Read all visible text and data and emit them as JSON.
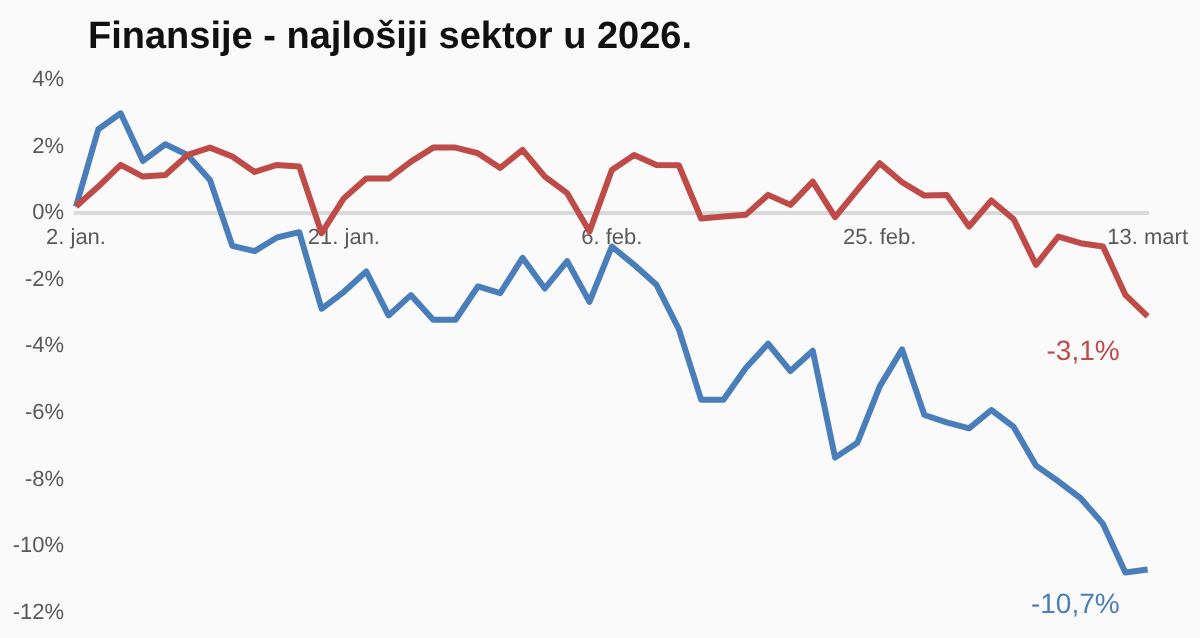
{
  "chart_data": {
    "type": "line",
    "title": "Finansije - najlošiji sektor u 2026.",
    "categories": [
      "2. jan.",
      null,
      null,
      null,
      null,
      null,
      null,
      null,
      null,
      null,
      null,
      null,
      "21. jan.",
      null,
      null,
      null,
      null,
      null,
      null,
      null,
      null,
      null,
      null,
      null,
      "6. feb.",
      null,
      null,
      null,
      null,
      null,
      null,
      null,
      null,
      null,
      null,
      null,
      "25. feb.",
      null,
      null,
      null,
      null,
      null,
      null,
      null,
      null,
      null,
      null,
      null,
      "13. mart"
    ],
    "series": [
      {
        "color": "#be4b48",
        "values": [
          0.2,
          0.8,
          1.45,
          1.1,
          1.15,
          1.75,
          1.97,
          1.7,
          1.24,
          1.45,
          1.4,
          -0.6,
          0.45,
          1.04,
          1.04,
          1.55,
          1.97,
          1.97,
          1.8,
          1.36,
          1.9,
          1.1,
          0.6,
          -0.55,
          1.3,
          1.75,
          1.45,
          1.44,
          -0.16,
          -0.1,
          -0.05,
          0.55,
          0.25,
          0.95,
          -0.12,
          0.7,
          1.5,
          0.93,
          0.53,
          0.55,
          -0.4,
          0.38,
          -0.18,
          -1.55,
          -0.7,
          -0.9,
          -1.0,
          -2.45,
          -3.1
        ]
      },
      {
        "color": "#4a7ebb",
        "values": [
          0.2,
          2.52,
          3.0,
          1.57,
          2.07,
          1.75,
          1.0,
          -0.98,
          -1.14,
          -0.73,
          -0.57,
          -2.87,
          -2.36,
          -1.75,
          -3.07,
          -2.46,
          -3.2,
          -3.2,
          -2.2,
          -2.4,
          -1.34,
          -2.26,
          -1.44,
          -2.66,
          -1.0,
          -1.55,
          -2.15,
          -3.48,
          -5.6,
          -5.6,
          -4.65,
          -3.92,
          -4.74,
          -4.13,
          -7.34,
          -6.89,
          -5.2,
          -4.09,
          -6.06,
          -6.28,
          -6.46,
          -5.91,
          -6.42,
          -7.58,
          -8.05,
          -8.56,
          -9.33,
          -10.79,
          -10.7
        ]
      }
    ],
    "ylim": [
      -12,
      4
    ],
    "yticks": [
      {
        "value": -12,
        "label": "-12%"
      },
      {
        "value": -10,
        "label": "-10%"
      },
      {
        "value": -8,
        "label": "-8%"
      },
      {
        "value": -6,
        "label": "-6%"
      },
      {
        "value": -4,
        "label": "-4%"
      },
      {
        "value": -2,
        "label": "-2%"
      },
      {
        "value": 0,
        "label": "0%"
      },
      {
        "value": 2,
        "label": "2%"
      },
      {
        "value": 4,
        "label": "4%"
      }
    ],
    "grid": false,
    "legend": false,
    "marker": "none",
    "line_style": "solid",
    "annotations": [
      {
        "text": "-3,1%",
        "x": "13. mart",
        "y": -3.1
      },
      {
        "text": "-10,7%",
        "x": "13. mart",
        "y": -10.7
      }
    ]
  }
}
